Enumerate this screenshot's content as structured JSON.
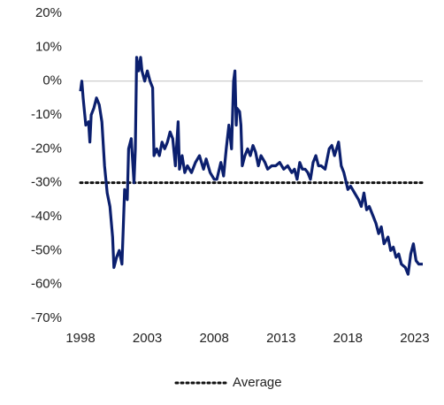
{
  "chart_data": {
    "type": "line",
    "x": [
      1998.0,
      1998.1,
      1998.2,
      1998.4,
      1998.6,
      1998.7,
      1998.8,
      1999.0,
      1999.2,
      1999.4,
      1999.6,
      1999.8,
      2000.0,
      2000.2,
      2000.4,
      2000.5,
      2000.7,
      2000.9,
      2001.1,
      2001.3,
      2001.5,
      2001.6,
      2001.8,
      2002.0,
      2002.1,
      2002.2,
      2002.35,
      2002.5,
      2002.6,
      2002.8,
      2003.0,
      2003.2,
      2003.4,
      2003.5,
      2003.7,
      2003.9,
      2004.1,
      2004.3,
      2004.5,
      2004.7,
      2004.9,
      2005.1,
      2005.3,
      2005.4,
      2005.6,
      2005.8,
      2006.0,
      2006.3,
      2006.6,
      2006.9,
      2007.2,
      2007.4,
      2007.7,
      2008.0,
      2008.2,
      2008.5,
      2008.7,
      2008.9,
      2009.1,
      2009.3,
      2009.45,
      2009.55,
      2009.65,
      2009.7,
      2009.9,
      2010.0,
      2010.1,
      2010.3,
      2010.5,
      2010.7,
      2010.9,
      2011.1,
      2011.3,
      2011.5,
      2011.8,
      2012.0,
      2012.3,
      2012.6,
      2012.9,
      2013.2,
      2013.5,
      2013.8,
      2014.0,
      2014.2,
      2014.4,
      2014.6,
      2014.8,
      2015.0,
      2015.2,
      2015.4,
      2015.6,
      2015.8,
      2016.0,
      2016.3,
      2016.6,
      2016.8,
      2017.0,
      2017.3,
      2017.5,
      2017.7,
      2018.0,
      2018.2,
      2018.5,
      2018.8,
      2019.0,
      2019.2,
      2019.4,
      2019.6,
      2019.9,
      2020.1,
      2020.3,
      2020.5,
      2020.7,
      2021.0,
      2021.2,
      2021.4,
      2021.6,
      2021.8,
      2022.0,
      2022.3,
      2022.5,
      2022.7,
      2022.9,
      2023.1,
      2023.3,
      2023.6
    ],
    "series": [
      {
        "color": "#0b1f6e",
        "values": [
          -3,
          0,
          -5,
          -13,
          -12,
          -18,
          -10,
          -8,
          -5,
          -7,
          -12,
          -25,
          -33,
          -37,
          -46,
          -55,
          -52,
          -50,
          -54,
          -32,
          -35,
          -20,
          -17,
          -30,
          -20,
          7,
          3,
          7,
          3,
          0,
          3,
          0,
          -2,
          -22,
          -20,
          -22,
          -18,
          -20,
          -18,
          -15,
          -17,
          -25,
          -12,
          -26,
          -22,
          -27,
          -25,
          -27,
          -24,
          -22,
          -26,
          -23,
          -27,
          -29,
          -29,
          -24,
          -28,
          -20,
          -13,
          -20,
          0,
          3,
          -13,
          -8,
          -9,
          -13,
          -25,
          -22,
          -20,
          -22,
          -19,
          -21,
          -25,
          -22,
          -24,
          -26,
          -25,
          -25,
          -24,
          -26,
          -25,
          -27,
          -26,
          -29,
          -24,
          -26,
          -26,
          -27,
          -29,
          -24,
          -22,
          -25,
          -25,
          -26,
          -20,
          -19,
          -22,
          -18,
          -25,
          -27,
          -32,
          -31,
          -33,
          -35,
          -37,
          -33,
          -38,
          -37,
          -40,
          -42,
          -45,
          -43,
          -48,
          -46,
          -50,
          -49,
          -52,
          -51,
          -54,
          -55,
          -57,
          -51,
          -48,
          -53,
          -54,
          -54
        ]
      }
    ],
    "average": {
      "name": "Average",
      "value": -30,
      "color": "#111111"
    },
    "xlim": [
      1998,
      2023.6
    ],
    "xticks": [
      1998,
      2003,
      2008,
      2013,
      2018,
      2023
    ],
    "ylim": [
      20,
      -70
    ],
    "yticks": [
      {
        "value": 20,
        "label": "20%"
      },
      {
        "value": 10,
        "label": "10%"
      },
      {
        "value": 0,
        "label": "0%"
      },
      {
        "value": -10,
        "label": "-10%"
      },
      {
        "value": -20,
        "label": "-20%"
      },
      {
        "value": -30,
        "label": "-30%"
      },
      {
        "value": -40,
        "label": "-40%"
      },
      {
        "value": -50,
        "label": "-50%"
      },
      {
        "value": -60,
        "label": "-60%"
      },
      {
        "value": -70,
        "label": "-70%"
      }
    ],
    "zero_line": true
  }
}
